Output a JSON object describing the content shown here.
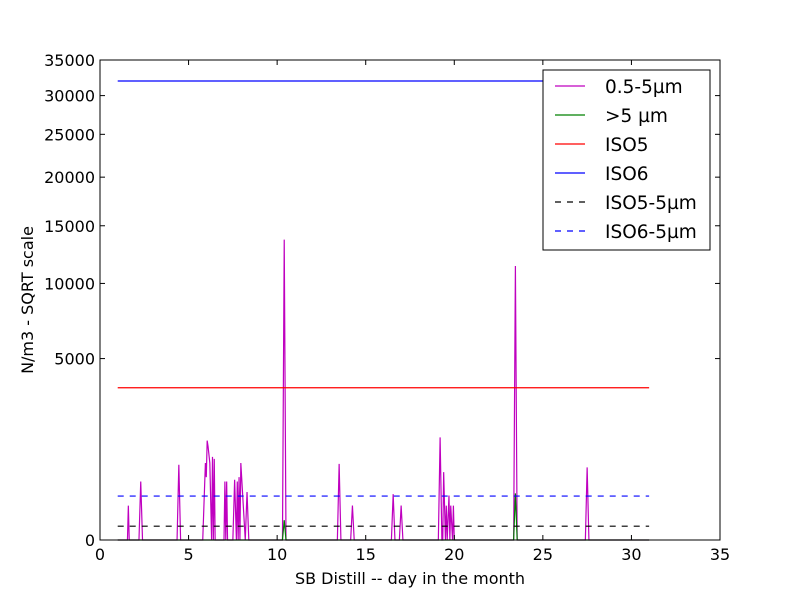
{
  "chart_data": {
    "type": "line",
    "title": "",
    "xlabel": "SB Distill -- day in the month",
    "ylabel": "N/m3 - SQRT scale",
    "xlim": [
      0,
      35
    ],
    "ylim": [
      0,
      35000
    ],
    "y_scale": "sqrt",
    "grid": false,
    "legend_position": "top-right",
    "x_ticks": [
      0,
      5,
      10,
      15,
      20,
      25,
      30,
      35
    ],
    "y_ticks": [
      0,
      5000,
      10000,
      15000,
      20000,
      25000,
      30000,
      35000
    ],
    "series": [
      {
        "name": "0.5-5µm",
        "color": "#bf00bf",
        "style": "solid",
        "x": [
          1.0,
          1.55,
          1.6,
          1.65,
          2.2,
          2.3,
          2.4,
          4.35,
          4.45,
          4.55,
          5.8,
          5.95,
          6.0,
          6.05,
          6.1,
          6.2,
          6.3,
          6.35,
          6.4,
          6.45,
          6.5,
          7.0,
          7.05,
          7.1,
          7.15,
          7.2,
          7.5,
          7.6,
          7.7,
          7.75,
          7.8,
          7.85,
          7.9,
          7.95,
          8.2,
          8.3,
          8.4,
          10.3,
          10.4,
          10.5,
          13.4,
          13.5,
          13.6,
          14.15,
          14.25,
          14.35,
          16.45,
          16.55,
          16.65,
          16.9,
          17.0,
          17.1,
          19.1,
          19.2,
          19.3,
          19.35,
          19.4,
          19.5,
          19.55,
          19.6,
          19.7,
          19.75,
          19.8,
          19.9,
          19.95,
          20.0,
          20.05,
          23.35,
          23.45,
          23.55,
          27.4,
          27.5,
          27.6,
          27.7,
          31.0
        ],
        "y": [
          0,
          0,
          180,
          0,
          0,
          520,
          0,
          0,
          860,
          0,
          0,
          900,
          600,
          1500,
          1330,
          900,
          0,
          1050,
          0,
          1000,
          0,
          0,
          520,
          0,
          520,
          0,
          0,
          550,
          0,
          520,
          0,
          600,
          0,
          900,
          0,
          350,
          0,
          0,
          13700,
          0,
          0,
          880,
          0,
          0,
          180,
          0,
          0,
          320,
          0,
          0,
          180,
          0,
          0,
          1600,
          0,
          0,
          700,
          0,
          180,
          0,
          300,
          0,
          180,
          0,
          180,
          0,
          0,
          0,
          11400,
          0,
          0,
          800,
          0,
          0,
          0
        ]
      },
      {
        "name": ">5 µm",
        "color": "#008000",
        "style": "solid",
        "x": [
          1.0,
          10.3,
          10.4,
          10.5,
          23.35,
          23.45,
          23.55,
          31.0
        ],
        "y": [
          0,
          0,
          60,
          0,
          0,
          330,
          0,
          0
        ]
      },
      {
        "name": "ISO5",
        "color": "#ff0000",
        "style": "solid",
        "x": [
          1.0,
          31.0
        ],
        "y": [
          3520,
          3520
        ]
      },
      {
        "name": "ISO6",
        "color": "#0000ff",
        "style": "solid",
        "x": [
          1.0,
          31.0
        ],
        "y": [
          32000,
          32000
        ]
      },
      {
        "name": "ISO5-5µm",
        "color": "#000000",
        "style": "dashed",
        "x": [
          1.0,
          31.0
        ],
        "y": [
          29,
          29
        ]
      },
      {
        "name": "ISO6-5µm",
        "color": "#0000ff",
        "style": "dashed",
        "x": [
          1.0,
          31.0
        ],
        "y": [
          293,
          293
        ]
      }
    ]
  }
}
